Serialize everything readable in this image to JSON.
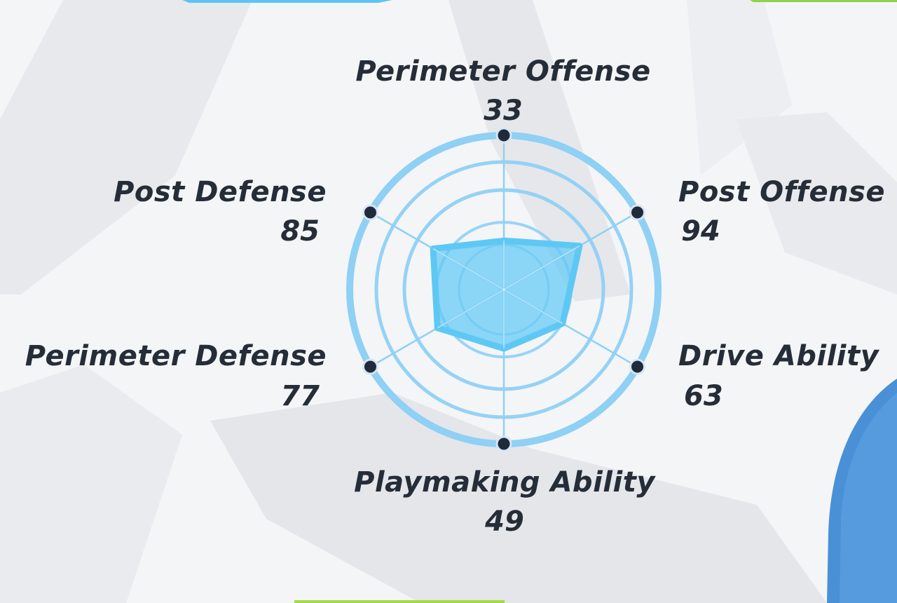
{
  "stats": [
    {
      "label": "Perimeter Offense",
      "value": "33"
    },
    {
      "label": "Post Offense",
      "value": "94"
    },
    {
      "label": "Drive Ability",
      "value": "63"
    },
    {
      "label": "Playmaking Ability",
      "value": "49"
    },
    {
      "label": "Perimeter Defense",
      "value": "77"
    },
    {
      "label": "Post Defense",
      "value": "85"
    }
  ],
  "colors": {
    "ring": "#8fd0f5",
    "fill": "#5ec8f5",
    "axis": "#8fd0f5",
    "node": "#1f2a3a",
    "text": "#252d38"
  }
}
